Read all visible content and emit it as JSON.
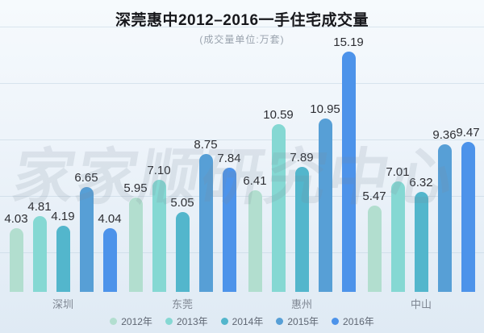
{
  "title": "深莞惠中2012–2016一手住宅成交量",
  "subtitle": "(成交量单位:万套)",
  "watermark": "家家顺研究中心",
  "colors": {
    "background_top": "#f6fafd",
    "background_bottom": "#dfeaf4",
    "gridline": "#b9cbdb",
    "value_label": "#2d2e33",
    "category_label": "#7e8692",
    "legend_text": "#5e6672"
  },
  "chart_data": {
    "type": "bar",
    "title": "深莞惠中2012–2016一手住宅成交量",
    "subtitle": "(成交量单位:万套)",
    "unit": "万套",
    "categories": [
      "深圳",
      "东莞",
      "惠州",
      "中山"
    ],
    "series": [
      {
        "name": "2012年",
        "color": "#b2decf",
        "values": [
          4.03,
          5.95,
          6.41,
          5.47
        ],
        "labels": [
          "4.03",
          "5.95",
          "6.41",
          "5.47"
        ]
      },
      {
        "name": "2013年",
        "color": "#85d8d3",
        "values": [
          4.81,
          7.1,
          10.59,
          7.01
        ],
        "labels": [
          "4.81",
          "7.10",
          "10.59",
          "7.01"
        ]
      },
      {
        "name": "2014年",
        "color": "#53b6cc",
        "values": [
          4.19,
          5.05,
          7.89,
          6.32
        ],
        "labels": [
          "4.19",
          "5.05",
          "7.89",
          "6.32"
        ]
      },
      {
        "name": "2015年",
        "color": "#579fd6",
        "values": [
          6.65,
          8.75,
          10.95,
          9.36
        ],
        "labels": [
          "6.65",
          "8.75",
          "10.95",
          "9.36"
        ]
      },
      {
        "name": "2016年",
        "color": "#4d93ea",
        "values": [
          4.04,
          7.84,
          15.19,
          9.47
        ],
        "labels": [
          "4.04",
          "7.84",
          "15.19",
          "9.47"
        ]
      }
    ],
    "ylim": [
      0,
      16
    ],
    "grid": true,
    "legend_position": "bottom",
    "value_labels_shown": true
  }
}
